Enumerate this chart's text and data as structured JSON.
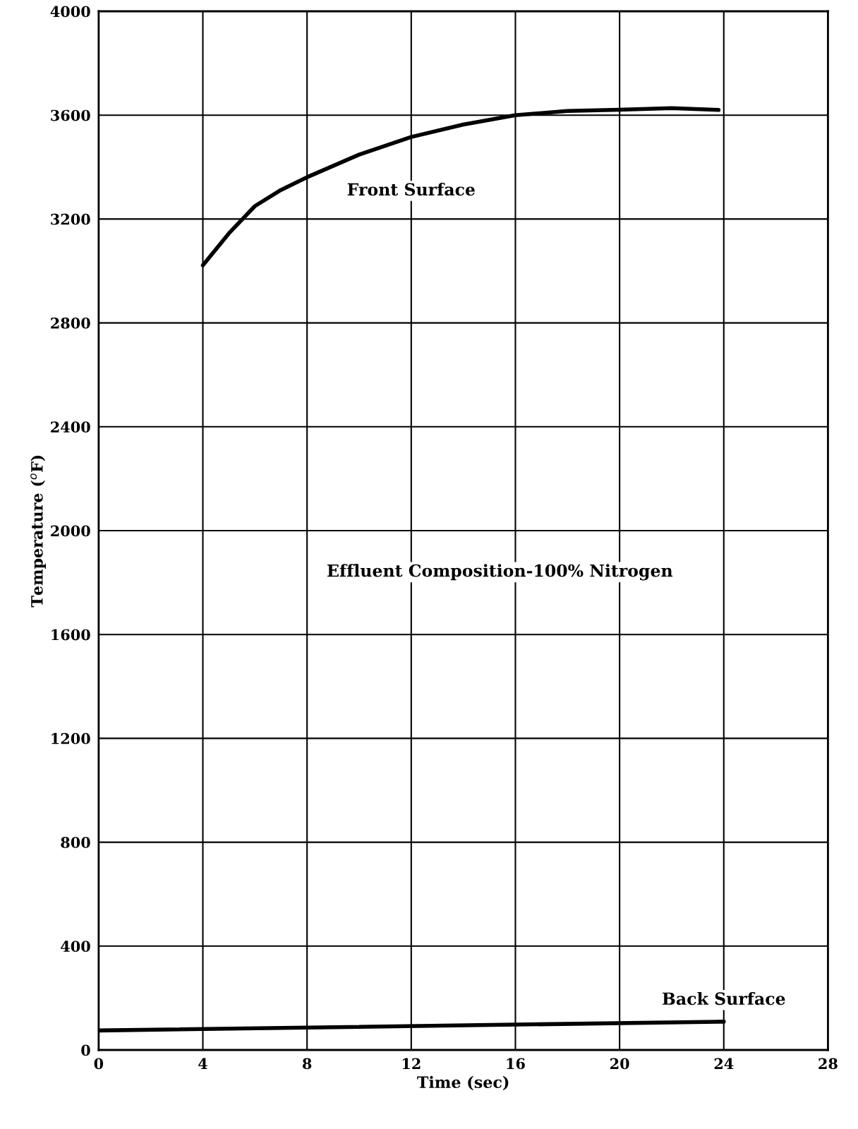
{
  "chart_data": {
    "type": "line",
    "xlabel": "Time (sec)",
    "ylabel": "Temperature ($^{o}$F)",
    "xlim": [
      0,
      28
    ],
    "xticks": [
      0,
      4,
      8,
      12,
      16,
      20,
      24,
      28
    ],
    "ylim": [
      0,
      4000
    ],
    "yticks": [
      0,
      400,
      800,
      1200,
      1600,
      2000,
      2400,
      2800,
      3200,
      3600,
      4000
    ],
    "grid": true,
    "legend": false,
    "marker": "none",
    "line_style": "solid",
    "series": [
      {
        "name": "Front Surface",
        "color": "#000000",
        "x": [
          4,
          5,
          6,
          7,
          8,
          10,
          12,
          14,
          16,
          18,
          20,
          22,
          23.8
        ],
        "values": [
          3022,
          3145,
          3250,
          3312,
          3361,
          3448,
          3516,
          3564,
          3600,
          3616,
          3621,
          3627,
          3620
        ]
      },
      {
        "name": "Back Surface",
        "color": "#000000",
        "x": [
          0,
          24
        ],
        "values": [
          75,
          109
        ]
      }
    ],
    "annotations": [
      "Effluent Composition-100% Nitrogen"
    ]
  }
}
